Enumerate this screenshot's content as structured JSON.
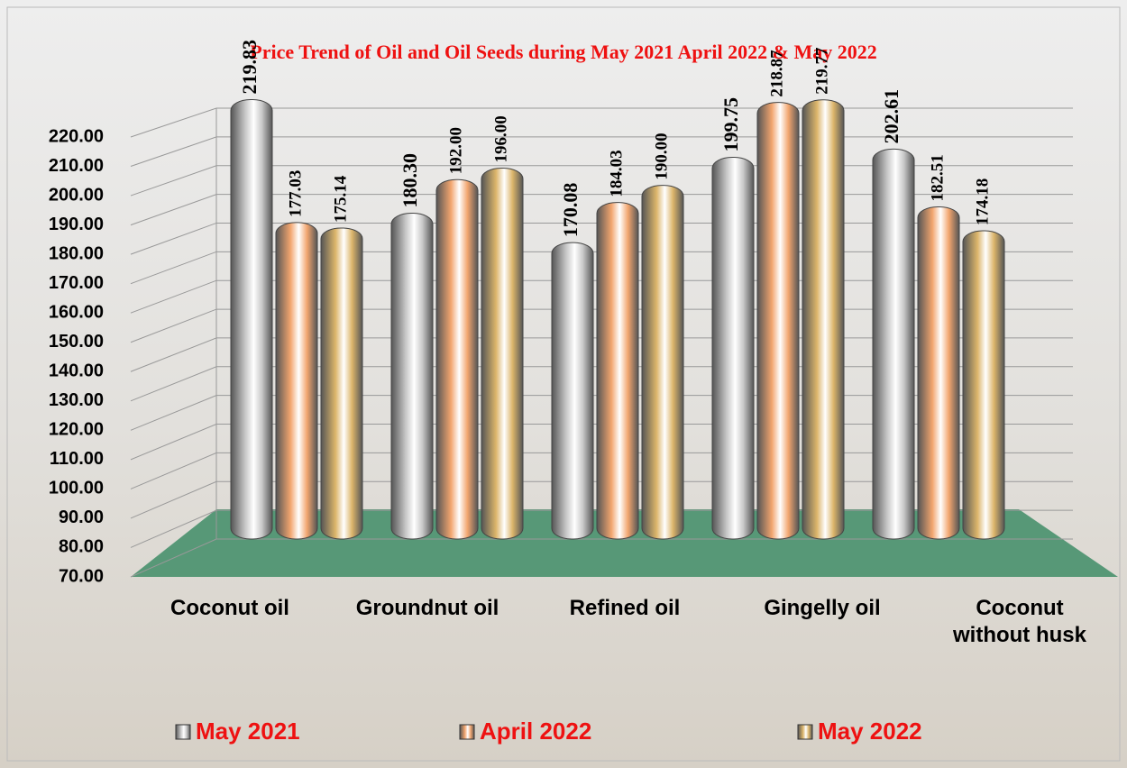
{
  "chart_data": {
    "type": "bar",
    "title": "Price Trend of Oil and Oil Seeds during  May 2021  April 2022  &  May 2022",
    "categories": [
      "Coconut oil",
      "Groundnut oil",
      "Refined oil",
      "Gingelly oil",
      "Coconut without husk"
    ],
    "series": [
      {
        "name": "May 2021",
        "color": "#c8c8c8",
        "values": [
          219.83,
          180.3,
          170.08,
          199.75,
          202.61
        ],
        "value_labels": [
          "219.83",
          "180.30",
          "170.08",
          "199.75",
          "202.61"
        ]
      },
      {
        "name": "April 2022",
        "color": "#f2a56e",
        "values": [
          177.03,
          192.0,
          184.03,
          218.87,
          182.51
        ],
        "value_labels": [
          "177.03",
          "192.00",
          "184.03",
          "218.87",
          "182.51"
        ]
      },
      {
        "name": "May 2022",
        "color": "#dcb56a",
        "values": [
          175.14,
          196.0,
          190.0,
          219.77,
          174.18
        ],
        "value_labels": [
          "175.14",
          "196.00",
          "190.00",
          "219.77",
          "174.18"
        ]
      }
    ],
    "ylim": [
      70,
      220
    ],
    "yticks": [
      {
        "value": 70,
        "label": "70.00"
      },
      {
        "value": 80,
        "label": "80.00"
      },
      {
        "value": 90,
        "label": "90.00"
      },
      {
        "value": 100,
        "label": "100.00"
      },
      {
        "value": 110,
        "label": "110.00"
      },
      {
        "value": 120,
        "label": "120.00"
      },
      {
        "value": 130,
        "label": "130.00"
      },
      {
        "value": 140,
        "label": "140.00"
      },
      {
        "value": 150,
        "label": "150.00"
      },
      {
        "value": 160,
        "label": "160.00"
      },
      {
        "value": 170,
        "label": "170.00"
      },
      {
        "value": 180,
        "label": "180.00"
      },
      {
        "value": 190,
        "label": "190.00"
      },
      {
        "value": 200,
        "label": "200.00"
      },
      {
        "value": 210,
        "label": "210.00"
      },
      {
        "value": 220,
        "label": "220.00"
      }
    ],
    "grid": true
  }
}
